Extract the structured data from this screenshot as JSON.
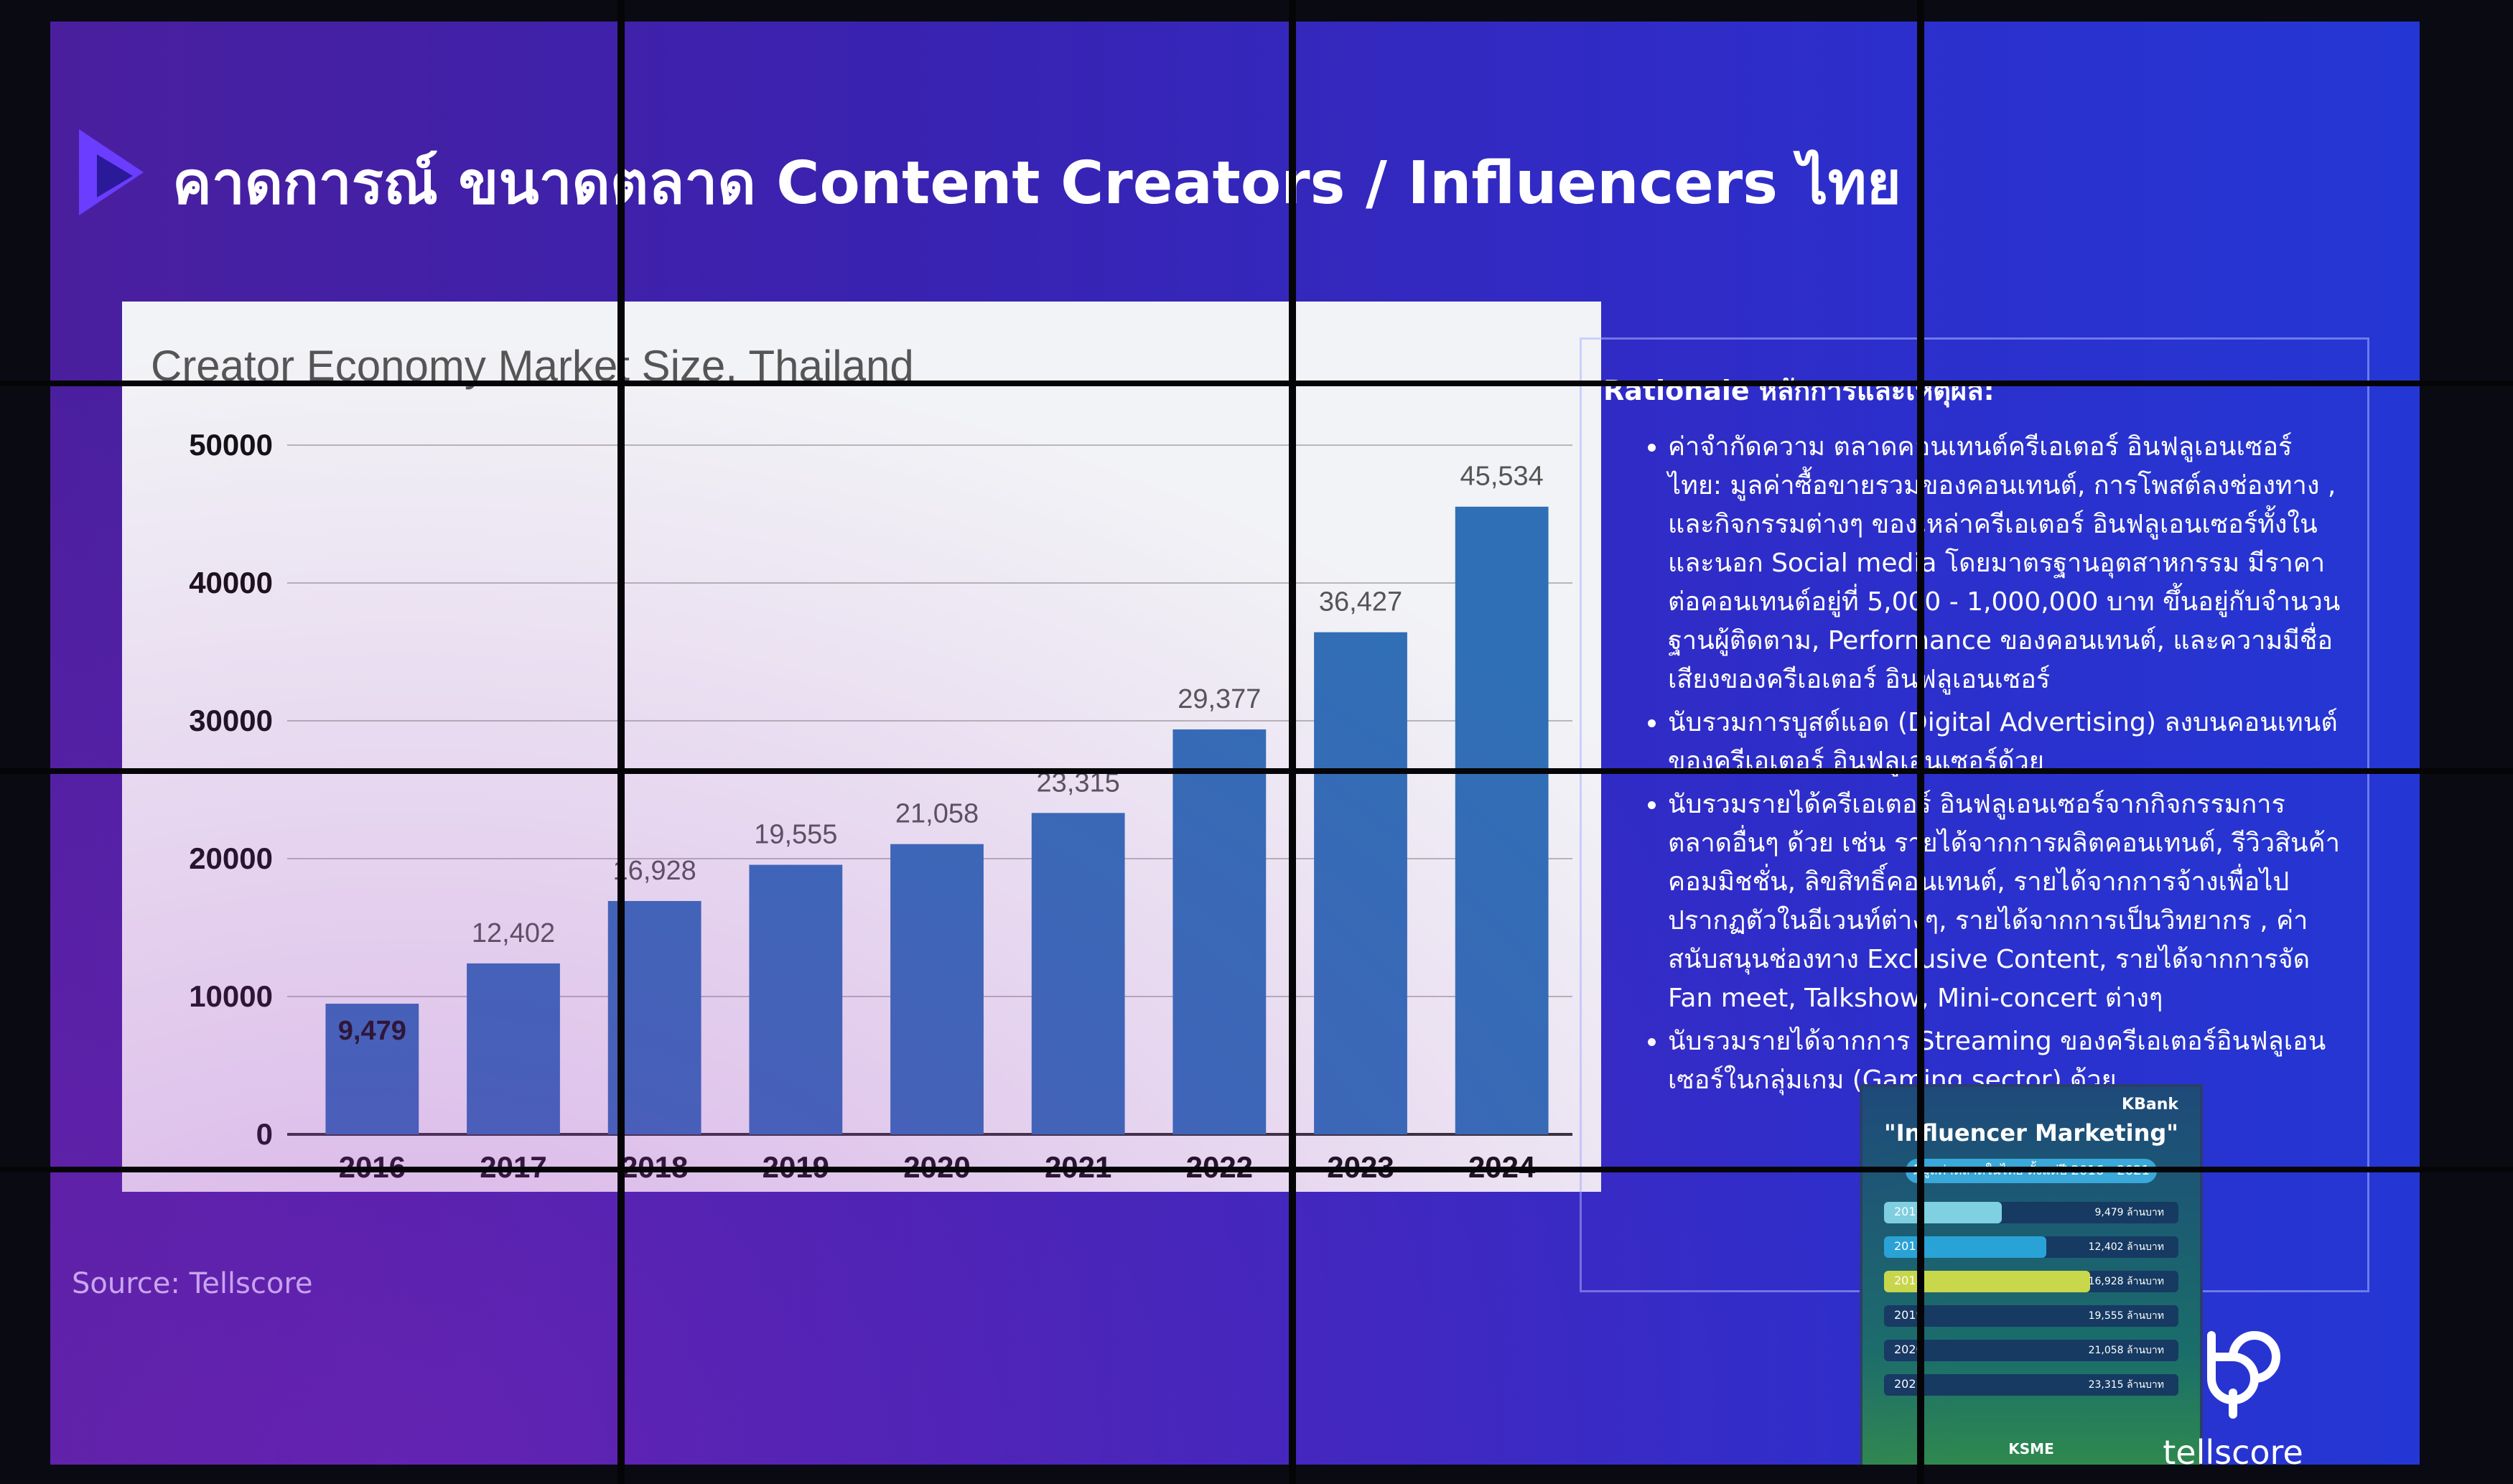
{
  "slide": {
    "title": "คาดการณ์ ขนาดตลาด Content Creators / Influencers ไทย",
    "source": "Source: Tellscore",
    "brand": "tellscore",
    "colors": {
      "background": "#3a22b0",
      "bar": "#2f6fb5",
      "panel": "#f2f3f6"
    }
  },
  "chart_data": {
    "type": "bar",
    "title": "Creator Economy Market Size, Thailand",
    "categories": [
      "2016",
      "2017",
      "2018",
      "2019",
      "2020",
      "2021",
      "2022",
      "2023",
      "2024"
    ],
    "values": [
      9479,
      12402,
      16928,
      19555,
      21058,
      23315,
      29377,
      36427,
      45534
    ],
    "value_labels": [
      "9,479",
      "12,402",
      "16,928",
      "19,555",
      "21,058",
      "23,315",
      "29,377",
      "36,427",
      "45,534"
    ],
    "yticks": [
      0,
      10000,
      20000,
      30000,
      40000,
      50000
    ],
    "ylim": [
      0,
      50000
    ],
    "grid": true,
    "xlabel": "",
    "ylabel": ""
  },
  "rationale": {
    "heading": "Rationale หลักการและเหตุผล:",
    "bullets": [
      "ค่าจำกัดความ ตลาดคอนเทนต์ครีเอเตอร์ อินฟลูเอนเซอร์ไทย: มูลค่าซื้อขายรวมของคอนเทนต์, การโพสต์ลงช่องทาง , และกิจกรรมต่างๆ ของเหล่าครีเอเตอร์ อินฟลูเอนเซอร์ทั้งในและนอก Social media โดยมาตรฐานอุตสาหกรรม มีราคาต่อคอนเทนต์อยู่ที่ 5,000 - 1,000,000 บาท ขึ้นอยู่กับจำนวนฐานผู้ติดตาม, Performance ของคอนเทนต์, และความมีชื่อเสียงของครีเอเตอร์ อินฟลูเอนเซอร์",
      "นับรวมการบูสต์แอด (Digital Advertising) ลงบนคอนเทนต์ของครีเอเตอร์ อินฟลูเอนเซอร์ด้วย",
      "นับรวมรายได้ครีเอเตอร์ อินฟลูเอนเซอร์จากกิจกรรมการตลาดอื่นๆ ด้วย เช่น รายได้จากการผลิตคอนเทนต์, รีวิวสินค้าคอมมิชชั่น, ลิขสิทธิ์คอนเทนต์, รายได้จากการจ้างเพื่อไปปรากฏตัวในอีเวนท์ต่างๆ, รายได้จากการเป็นวิทยากร , ค่าสนับสนุนช่องทาง Exclusive Content, รายได้จากการจัด Fan meet, Talkshow, Mini-concert ต่างๆ",
      "นับรวมรายได้จากการ Streaming ของครีเอเตอร์อินฟลูเอนเซอร์ในกลุ่มเกม (Gaming sector) ด้วย"
    ]
  },
  "thumbnail": {
    "brand": "KBank",
    "title": "\"Influencer Marketing\"",
    "subtitle": "มีมูลค่าตลาดในไทย ตั้งแต่ปี 2016 - 2021",
    "rows": [
      {
        "year": "2016",
        "value": "9,479 ล้านบาท",
        "fill": 0.4,
        "color": "#7fd0e0"
      },
      {
        "year": "2017",
        "value": "12,402 ล้านบาท",
        "fill": 0.55,
        "color": "#29a3d6"
      },
      {
        "year": "2018",
        "value": "16,928 ล้านบาท",
        "fill": 0.7,
        "color": "#c9d84a"
      },
      {
        "year": "2019",
        "value": "19,555 ล้านบาท",
        "fill": 0.0,
        "color": "#1a6fb0"
      },
      {
        "year": "2020",
        "value": "21,058 ล้านบาท",
        "fill": 0.0,
        "color": "#1a6fb0"
      },
      {
        "year": "2021",
        "value": "23,315 ล้านบาท",
        "fill": 0.0,
        "color": "#1a6fb0"
      }
    ],
    "footer": "KSME"
  }
}
